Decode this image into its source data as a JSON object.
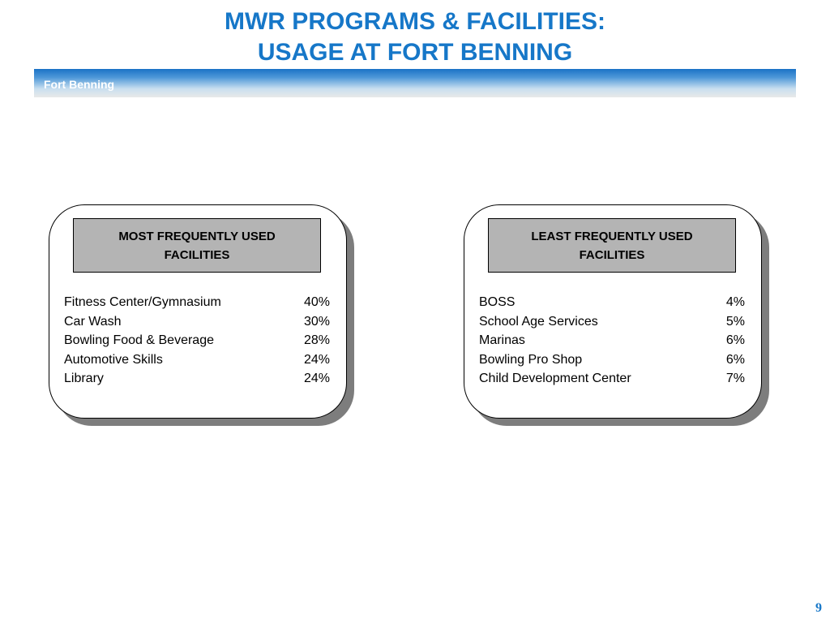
{
  "title": {
    "line1": "MWR PROGRAMS & FACILITIES:",
    "line2": "USAGE AT FORT BENNING"
  },
  "band": {
    "label": "Fort Benning"
  },
  "most_used": {
    "header": "MOST FREQUENTLY USED FACILITIES",
    "rows": [
      {
        "name": "Fitness Center/Gymnasium",
        "value": "40%"
      },
      {
        "name": "Car Wash",
        "value": "30%"
      },
      {
        "name": "Bowling Food & Beverage",
        "value": "28%"
      },
      {
        "name": "Automotive Skills",
        "value": "24%"
      },
      {
        "name": "Library",
        "value": "24%"
      }
    ]
  },
  "least_used": {
    "header": "LEAST FREQUENTLY USED FACILITIES",
    "rows": [
      {
        "name": "BOSS",
        "value": "4%"
      },
      {
        "name": "School Age Services",
        "value": "5%"
      },
      {
        "name": "Marinas",
        "value": "6%"
      },
      {
        "name": "Bowling Pro Shop",
        "value": "6%"
      },
      {
        "name": "Child Development Center",
        "value": "7%"
      }
    ]
  },
  "page_number": "9",
  "colors": {
    "title": "#1677c8",
    "header_fill": "#b4b4b4",
    "shadow": "#7d7d7d"
  }
}
